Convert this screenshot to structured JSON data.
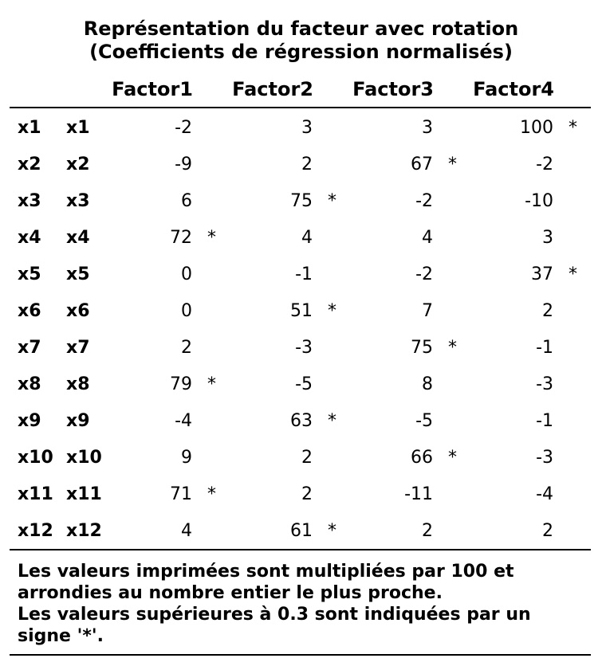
{
  "title_line1": "Représentation du facteur avec rotation",
  "title_line2": "(Coefficients de régression normalisés)",
  "factors": [
    "Factor1",
    "Factor2",
    "Factor3",
    "Factor4"
  ],
  "rows": [
    {
      "label1": "x1",
      "label2": "x1",
      "cells": [
        {
          "v": "-2",
          "s": ""
        },
        {
          "v": "3",
          "s": ""
        },
        {
          "v": "3",
          "s": ""
        },
        {
          "v": "100",
          "s": "*"
        }
      ]
    },
    {
      "label1": "x2",
      "label2": "x2",
      "cells": [
        {
          "v": "-9",
          "s": ""
        },
        {
          "v": "2",
          "s": ""
        },
        {
          "v": "67",
          "s": "*"
        },
        {
          "v": "-2",
          "s": ""
        }
      ]
    },
    {
      "label1": "x3",
      "label2": "x3",
      "cells": [
        {
          "v": "6",
          "s": ""
        },
        {
          "v": "75",
          "s": "*"
        },
        {
          "v": "-2",
          "s": ""
        },
        {
          "v": "-10",
          "s": ""
        }
      ]
    },
    {
      "label1": "x4",
      "label2": "x4",
      "cells": [
        {
          "v": "72",
          "s": "*"
        },
        {
          "v": "4",
          "s": ""
        },
        {
          "v": "4",
          "s": ""
        },
        {
          "v": "3",
          "s": ""
        }
      ]
    },
    {
      "label1": "x5",
      "label2": "x5",
      "cells": [
        {
          "v": "0",
          "s": ""
        },
        {
          "v": "-1",
          "s": ""
        },
        {
          "v": "-2",
          "s": ""
        },
        {
          "v": "37",
          "s": "*"
        }
      ]
    },
    {
      "label1": "x6",
      "label2": "x6",
      "cells": [
        {
          "v": "0",
          "s": ""
        },
        {
          "v": "51",
          "s": "*"
        },
        {
          "v": "7",
          "s": ""
        },
        {
          "v": "2",
          "s": ""
        }
      ]
    },
    {
      "label1": "x7",
      "label2": "x7",
      "cells": [
        {
          "v": "2",
          "s": ""
        },
        {
          "v": "-3",
          "s": ""
        },
        {
          "v": "75",
          "s": "*"
        },
        {
          "v": "-1",
          "s": ""
        }
      ]
    },
    {
      "label1": "x8",
      "label2": "x8",
      "cells": [
        {
          "v": "79",
          "s": "*"
        },
        {
          "v": "-5",
          "s": ""
        },
        {
          "v": "8",
          "s": ""
        },
        {
          "v": "-3",
          "s": ""
        }
      ]
    },
    {
      "label1": "x9",
      "label2": "x9",
      "cells": [
        {
          "v": "-4",
          "s": ""
        },
        {
          "v": "63",
          "s": "*"
        },
        {
          "v": "-5",
          "s": ""
        },
        {
          "v": "-1",
          "s": ""
        }
      ]
    },
    {
      "label1": "x10",
      "label2": "x10",
      "cells": [
        {
          "v": "9",
          "s": ""
        },
        {
          "v": "2",
          "s": ""
        },
        {
          "v": "66",
          "s": "*"
        },
        {
          "v": "-3",
          "s": ""
        }
      ]
    },
    {
      "label1": "x11",
      "label2": "x11",
      "cells": [
        {
          "v": "71",
          "s": "*"
        },
        {
          "v": "2",
          "s": ""
        },
        {
          "v": "-11",
          "s": ""
        },
        {
          "v": "-4",
          "s": ""
        }
      ]
    },
    {
      "label1": "x12",
      "label2": "x12",
      "cells": [
        {
          "v": "4",
          "s": ""
        },
        {
          "v": "61",
          "s": "*"
        },
        {
          "v": "2",
          "s": ""
        },
        {
          "v": "2",
          "s": ""
        }
      ]
    }
  ],
  "notes": [
    "Les valeurs imprimées sont multipliées par 100 et",
    "arrondies au nombre entier le plus proche.",
    "Les valeurs supérieures à 0.3 sont indiquées par un",
    "signe '*'."
  ]
}
